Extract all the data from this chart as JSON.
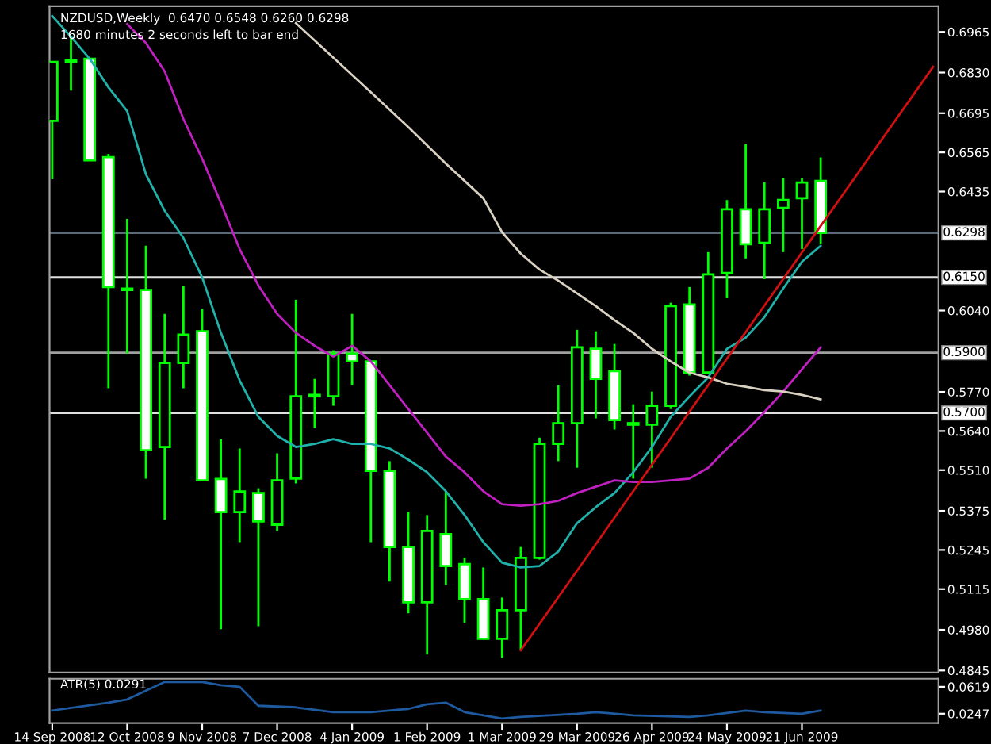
{
  "chart_data": [
    {
      "type": "candlestick",
      "title": "NZDUSD,Weekly  0.6470 0.6548 0.6260 0.6298",
      "subtitle": "1680 minutes 2 seconds left to bar end",
      "x": [
        "2008-09-14",
        "2008-09-21",
        "2008-09-28",
        "2008-10-05",
        "2008-10-12",
        "2008-10-19",
        "2008-10-26",
        "2008-11-02",
        "2008-11-09",
        "2008-11-16",
        "2008-11-23",
        "2008-11-30",
        "2008-12-07",
        "2008-12-14",
        "2008-12-21",
        "2008-12-28",
        "2009-01-04",
        "2009-01-11",
        "2009-01-18",
        "2009-01-25",
        "2009-02-01",
        "2009-02-08",
        "2009-02-15",
        "2009-02-22",
        "2009-03-01",
        "2009-03-08",
        "2009-03-15",
        "2009-03-22",
        "2009-03-29",
        "2009-04-05",
        "2009-04-12",
        "2009-04-19",
        "2009-04-26",
        "2009-05-03",
        "2009-05-10",
        "2009-05-17",
        "2009-05-24",
        "2009-05-31",
        "2009-06-07",
        "2009-06-14",
        "2009-06-21",
        "2009-06-28"
      ],
      "ohlc": [
        [
          0.667,
          0.6865,
          0.6476,
          0.6865
        ],
        [
          0.6865,
          0.6944,
          0.677,
          0.687
        ],
        [
          0.6876,
          0.6876,
          0.6539,
          0.6539
        ],
        [
          0.6549,
          0.656,
          0.5782,
          0.6118
        ],
        [
          0.6113,
          0.6344,
          0.5897,
          0.6108
        ],
        [
          0.6108,
          0.6255,
          0.5482,
          0.5576
        ],
        [
          0.5587,
          0.6029,
          0.5345,
          0.5866
        ],
        [
          0.5866,
          0.6123,
          0.5782,
          0.596
        ],
        [
          0.5971,
          0.6045,
          0.5476,
          0.5476
        ],
        [
          0.5481,
          0.5613,
          0.4982,
          0.5371
        ],
        [
          0.5371,
          0.5582,
          0.5271,
          0.5439
        ],
        [
          0.5434,
          0.545,
          0.4992,
          0.534
        ],
        [
          0.5329,
          0.5566,
          0.5308,
          0.5476
        ],
        [
          0.5482,
          0.6076,
          0.5466,
          0.5755
        ],
        [
          0.5755,
          0.5813,
          0.565,
          0.576
        ],
        [
          0.5755,
          0.5908,
          0.5724,
          0.5897
        ],
        [
          0.5897,
          0.6029,
          0.5792,
          0.5871
        ],
        [
          0.5871,
          0.5871,
          0.5271,
          0.5508
        ],
        [
          0.5508,
          0.554,
          0.514,
          0.5255
        ],
        [
          0.5255,
          0.5371,
          0.5035,
          0.5071
        ],
        [
          0.5071,
          0.5361,
          0.4898,
          0.5308
        ],
        [
          0.5298,
          0.544,
          0.5129,
          0.5192
        ],
        [
          0.5198,
          0.5219,
          0.5003,
          0.5082
        ],
        [
          0.5082,
          0.5187,
          0.495,
          0.495
        ],
        [
          0.495,
          0.5087,
          0.4887,
          0.5045
        ],
        [
          0.5045,
          0.5255,
          0.4913,
          0.5219
        ],
        [
          0.5219,
          0.5618,
          0.5213,
          0.5597
        ],
        [
          0.5597,
          0.5792,
          0.554,
          0.5666
        ],
        [
          0.5666,
          0.5976,
          0.5518,
          0.5918
        ],
        [
          0.5913,
          0.5971,
          0.5682,
          0.5813
        ],
        [
          0.5839,
          0.5929,
          0.5645,
          0.5676
        ],
        [
          0.5666,
          0.5729,
          0.5482,
          0.5661
        ],
        [
          0.5661,
          0.5771,
          0.5518,
          0.5724
        ],
        [
          0.5724,
          0.6066,
          0.5713,
          0.6055
        ],
        [
          0.606,
          0.6118,
          0.5824,
          0.5834
        ],
        [
          0.5834,
          0.6234,
          0.5829,
          0.616
        ],
        [
          0.6165,
          0.6407,
          0.6081,
          0.6376
        ],
        [
          0.6376,
          0.6592,
          0.6213,
          0.626
        ],
        [
          0.6265,
          0.6465,
          0.6144,
          0.6376
        ],
        [
          0.6381,
          0.6481,
          0.6234,
          0.6407
        ],
        [
          0.6413,
          0.6481,
          0.6244,
          0.6465
        ],
        [
          0.647,
          0.6548,
          0.626,
          0.6298
        ]
      ],
      "series": [
        {
          "type": "line",
          "color": "#20b2aa",
          "values": [
            0.7018,
            0.6949,
            0.6876,
            0.6781,
            0.6702,
            0.6492,
            0.6371,
            0.6281,
            0.615,
            0.5966,
            0.5808,
            0.5687,
            0.5624,
            0.5587,
            0.5597,
            0.5613,
            0.5597,
            0.5597,
            0.5582,
            0.5545,
            0.5503,
            0.544,
            0.5361,
            0.5271,
            0.5203,
            0.5187,
            0.5192,
            0.524,
            0.5334,
            0.5387,
            0.5434,
            0.5503,
            0.5587,
            0.5687,
            0.5755,
            0.5818,
            0.5913,
            0.595,
            0.6018,
            0.6113,
            0.6202,
            0.6255
          ]
        },
        {
          "type": "line",
          "color": "#c020c0",
          "x": [
            "2008-10-12",
            "2008-10-19",
            "2008-10-26",
            "2008-11-02",
            "2008-11-09",
            "2008-11-16",
            "2008-11-23",
            "2008-11-30",
            "2008-12-07",
            "2008-12-14",
            "2008-12-21",
            "2008-12-28",
            "2009-01-04",
            "2009-01-11",
            "2009-01-18",
            "2009-01-25",
            "2009-02-01",
            "2009-02-08",
            "2009-02-15",
            "2009-02-22",
            "2009-03-01",
            "2009-03-08",
            "2009-03-15",
            "2009-03-22",
            "2009-03-29",
            "2009-04-05",
            "2009-04-12",
            "2009-04-19",
            "2009-04-26",
            "2009-05-03",
            "2009-05-10",
            "2009-05-17",
            "2009-05-24",
            "2009-05-31",
            "2009-06-07",
            "2009-06-14",
            "2009-06-21",
            "2009-06-28"
          ],
          "values": [
            0.6991,
            0.6928,
            0.6834,
            0.6676,
            0.6544,
            0.6397,
            0.6244,
            0.6123,
            0.6029,
            0.5966,
            0.5923,
            0.5887,
            0.5923,
            0.5871,
            0.5792,
            0.5713,
            0.5634,
            0.5555,
            0.5503,
            0.544,
            0.5397,
            0.5392,
            0.5397,
            0.5408,
            0.5434,
            0.5455,
            0.5476,
            0.5471,
            0.5471,
            0.5476,
            0.5482,
            0.5518,
            0.5582,
            0.5639,
            0.5703,
            0.5771,
            0.5845,
            0.5918
          ]
        },
        {
          "type": "line",
          "color": "#d8d0c0",
          "x": [
            "2008-12-14",
            "2009-01-11",
            "2009-01-25",
            "2009-02-08",
            "2009-02-22",
            "2009-03-01",
            "2009-03-08",
            "2009-03-15",
            "2009-03-22",
            "2009-03-29",
            "2009-04-05",
            "2009-04-12",
            "2009-04-19",
            "2009-04-26",
            "2009-05-03",
            "2009-05-10",
            "2009-05-17",
            "2009-05-24",
            "2009-05-31",
            "2009-06-07",
            "2009-06-14",
            "2009-06-21",
            "2009-06-28"
          ],
          "values": [
            0.6994,
            0.6765,
            0.6649,
            0.6528,
            0.6413,
            0.63,
            0.6229,
            0.6176,
            0.6139,
            0.6097,
            0.6055,
            0.6008,
            0.5966,
            0.5913,
            0.5871,
            0.5834,
            0.5818,
            0.5797,
            0.5787,
            0.5776,
            0.5771,
            0.576,
            0.5745
          ]
        },
        {
          "type": "line",
          "color": "#d01010",
          "x": [
            "2009-03-08",
            "2009-08-09"
          ],
          "values": [
            0.4912,
            0.6849
          ]
        }
      ],
      "ref_lines": [
        {
          "axis": "y",
          "value": 0.6298,
          "label": "0.6298",
          "color": "#5a6a78"
        },
        {
          "axis": "y",
          "value": 0.615,
          "label": "0.6150",
          "color": "#e0e0e0"
        },
        {
          "axis": "y",
          "value": 0.59,
          "label": "0.5900",
          "color": "#a0a0a0"
        },
        {
          "axis": "y",
          "value": 0.57,
          "label": "0.5700",
          "color": "#e0e0e0"
        }
      ],
      "xlim": [
        "2008-09-13",
        "2009-08-11"
      ],
      "ylim": [
        0.4838,
        0.705
      ],
      "yticks": [
        0.6965,
        {
          "value": 0.683,
          "label": "0.6830"
        },
        0.6695,
        0.6565,
        0.6435,
        {
          "value": 0.604,
          "label": "0.6040"
        },
        {
          "value": 0.577,
          "label": "0.5770"
        },
        {
          "value": 0.564,
          "label": "0.5640"
        },
        {
          "value": 0.551,
          "label": "0.5510"
        },
        0.5375,
        0.5245,
        0.5115,
        {
          "value": 0.498,
          "label": "0.4980"
        },
        0.4845
      ],
      "tick_labels": "y",
      "grid": false
    },
    {
      "type": "line",
      "title": "ATR(5) 0.0291",
      "x": [
        "2008-09-14",
        "2008-10-05",
        "2008-10-12",
        "2008-10-26",
        "2008-11-09",
        "2008-11-16",
        "2008-11-23",
        "2008-11-30",
        "2008-12-14",
        "2008-12-28",
        "2009-01-11",
        "2009-01-25",
        "2009-02-01",
        "2009-02-08",
        "2009-02-15",
        "2009-03-01",
        "2009-03-08",
        "2009-03-29",
        "2009-04-05",
        "2009-04-19",
        "2009-05-10",
        "2009-05-17",
        "2009-05-31",
        "2009-06-07",
        "2009-06-21",
        "2009-06-28"
      ],
      "series": [
        {
          "color": "#1e5aa0",
          "values": [
            0.0291,
            0.04,
            0.0444,
            0.0685,
            0.0685,
            0.0641,
            0.0619,
            0.0357,
            0.0335,
            0.0269,
            0.0269,
            0.0313,
            0.0378,
            0.04,
            0.0269,
            0.0181,
            0.0203,
            0.0247,
            0.0269,
            0.0225,
            0.0203,
            0.0225,
            0.0291,
            0.0269,
            0.0247,
            0.0291
          ]
        }
      ],
      "xlim": [
        "2008-09-13",
        "2009-08-11"
      ],
      "ylim": [
        0.0116,
        0.073
      ],
      "yticks": [
        0.0619,
        0.0247
      ],
      "xticks": [
        {
          "value": "2008-09-14",
          "label": "14 Sep 2008"
        },
        {
          "value": "2008-10-12",
          "label": "12 Oct 2008"
        },
        {
          "value": "2008-11-09",
          "label": "9 Nov 2008"
        },
        {
          "value": "2008-12-07",
          "label": "7 Dec 2008"
        },
        {
          "value": "2009-01-04",
          "label": "4 Jan 2009"
        },
        {
          "value": "2009-02-01",
          "label": "1 Feb 2009"
        },
        {
          "value": "2009-03-01",
          "label": "1 Mar 2009"
        },
        {
          "value": "2009-03-29",
          "label": "29 Mar 2009"
        },
        {
          "value": "2009-04-26",
          "label": "26 Apr 2009"
        },
        {
          "value": "2009-05-24",
          "label": "24 May 2009"
        },
        {
          "value": "2009-06-21",
          "label": "21 Jun 2009"
        }
      ],
      "grid": false
    }
  ]
}
